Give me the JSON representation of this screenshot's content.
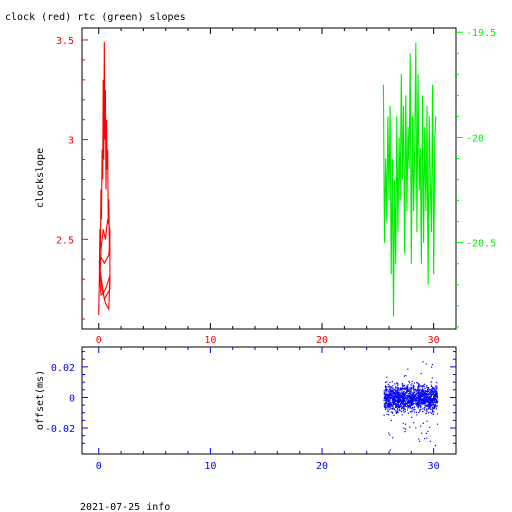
{
  "title": "clock (red) rtc (green) slopes",
  "footer": "2021-07-25 info",
  "colors": {
    "clock": "#ff0000",
    "rtc": "#00ee00",
    "offset": "#0000ff",
    "frame": "#000000"
  },
  "chart_data": [
    {
      "type": "line",
      "ylabel": "clockslope",
      "xlim": [
        -1.5,
        32
      ],
      "ylim_left": [
        2.05,
        3.56
      ],
      "ylim_right": [
        -20.91,
        -19.48
      ],
      "x_ticks": [
        0,
        10,
        20,
        30
      ],
      "x_tick_labels": [
        "0",
        "10",
        "20",
        "30"
      ],
      "left_ticks": [
        2.5,
        3,
        3.5
      ],
      "left_tick_labels": [
        "2.5",
        "3",
        "3.5"
      ],
      "right_ticks": [
        -19.5,
        -20,
        -20.5
      ],
      "right_tick_labels": [
        "-19.5",
        "-20",
        "-20.5"
      ],
      "series": [
        {
          "axis": "left",
          "x": [
            0.0,
            0.05,
            0.1,
            0.15,
            0.2,
            0.25,
            0.3,
            0.35,
            0.4,
            0.45,
            0.5,
            0.55,
            0.6,
            0.65,
            0.7,
            0.75,
            0.8,
            0.85,
            0.9,
            0.95,
            1.0,
            0.9,
            0.7,
            0.5,
            0.3,
            0.1,
            0.05,
            0.1,
            0.3,
            0.6,
            0.9,
            1.0,
            0.8,
            0.6,
            0.4,
            0.2,
            0.1,
            0.2,
            0.4,
            0.6,
            0.8,
            1.0,
            1.0,
            0.5,
            0.1
          ],
          "y": [
            2.12,
            2.3,
            2.55,
            2.45,
            2.75,
            2.6,
            2.95,
            2.8,
            3.3,
            2.9,
            3.49,
            3.0,
            3.25,
            2.75,
            3.1,
            2.85,
            2.95,
            2.6,
            2.7,
            2.45,
            2.5,
            2.42,
            2.4,
            2.38,
            2.4,
            2.42,
            2.38,
            2.35,
            2.25,
            2.18,
            2.15,
            2.32,
            2.28,
            2.25,
            2.23,
            2.22,
            2.3,
            2.45,
            2.55,
            2.5,
            2.6,
            2.55,
            2.25,
            2.2,
            2.35
          ]
        },
        {
          "axis": "right",
          "x": [
            25.5,
            25.6,
            25.7,
            25.8,
            25.9,
            26.0,
            26.1,
            26.2,
            26.3,
            26.4,
            26.5,
            26.6,
            26.7,
            26.8,
            26.9,
            27.0,
            27.1,
            27.2,
            27.3,
            27.4,
            27.5,
            27.6,
            27.7,
            27.8,
            27.9,
            28.0,
            28.1,
            28.2,
            28.3,
            28.4,
            28.5,
            28.6,
            28.7,
            28.8,
            28.9,
            29.0,
            29.1,
            29.2,
            29.3,
            29.4,
            29.5,
            29.6,
            29.7,
            29.8,
            29.9,
            30.0,
            30.1,
            30.2
          ],
          "y": [
            -19.75,
            -20.5,
            -20.1,
            -20.4,
            -19.9,
            -20.3,
            -19.85,
            -20.65,
            -20.1,
            -20.85,
            -20.2,
            -20.6,
            -19.9,
            -20.45,
            -20.0,
            -20.3,
            -19.7,
            -20.2,
            -19.85,
            -20.55,
            -19.8,
            -20.35,
            -19.95,
            -20.15,
            -19.6,
            -20.6,
            -19.9,
            -20.35,
            -20.05,
            -19.55,
            -20.45,
            -19.7,
            -20.25,
            -20.05,
            -20.6,
            -19.8,
            -20.5,
            -19.95,
            -20.35,
            -19.85,
            -20.7,
            -19.9,
            -20.2,
            -20.45,
            -19.75,
            -20.65,
            -20.0,
            -19.9
          ]
        }
      ]
    },
    {
      "type": "scatter",
      "ylabel": "offset(ms)",
      "xlim": [
        -1.5,
        32
      ],
      "ylim": [
        -0.037,
        0.033
      ],
      "x_ticks": [
        0,
        10,
        20,
        30
      ],
      "x_tick_labels": [
        "0",
        "10",
        "20",
        "30"
      ],
      "y_ticks": [
        0.02,
        0,
        -0.02
      ],
      "y_tick_labels": [
        "0.02",
        "0",
        "-0.02"
      ],
      "series": [
        {
          "point_count": 1400,
          "x_range": [
            25.5,
            30.3
          ],
          "core_spread": 0.012,
          "outlier_range": [
            -0.035,
            0.03
          ]
        }
      ]
    }
  ]
}
